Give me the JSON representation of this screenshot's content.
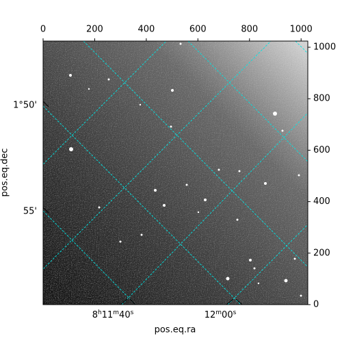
{
  "chart_data": {
    "type": "image",
    "xlabel": "pos.eq.ra",
    "ylabel": "pos.eq.dec",
    "xlim": [
      0,
      1026
    ],
    "ylim": [
      0,
      1024
    ],
    "xticks": [
      0,
      200,
      400,
      600,
      800,
      1000
    ],
    "yticks": [
      0,
      200,
      400,
      600,
      800,
      1000
    ],
    "ra_ticks": [
      "8h11m40s",
      "12m00s"
    ],
    "dec_ticks": [
      "1°50'",
      "55'"
    ],
    "grid_color": "#00e5e5"
  }
}
